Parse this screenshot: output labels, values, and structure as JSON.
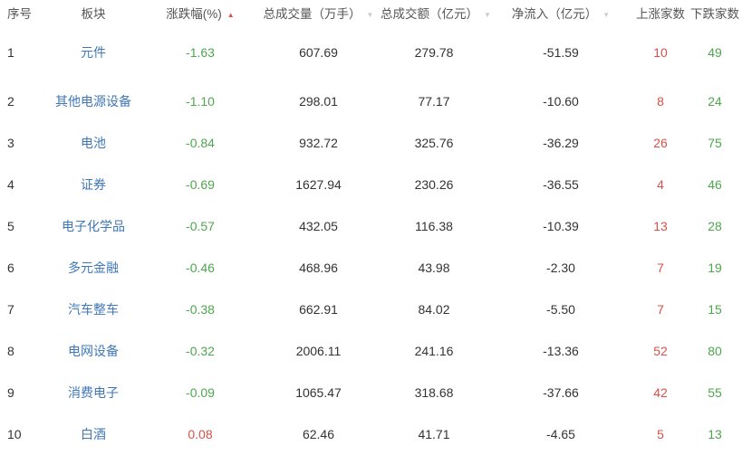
{
  "headers": {
    "index": "序号",
    "sector": "板块",
    "change": "涨跌幅(%)",
    "volume": "总成交量（万手）",
    "amount": "总成交额（亿元）",
    "netflow": "净流入（亿元）",
    "up": "上涨家数",
    "down": "下跌家数"
  },
  "sort": {
    "active_column": "change",
    "direction": "ascending"
  },
  "colors": {
    "up": "#d8504b",
    "down": "#4ea64e",
    "link": "#3f77b8"
  },
  "rows": [
    {
      "index": "1",
      "sector": "元件",
      "change": "-1.63",
      "volume": "607.69",
      "amount": "279.78",
      "netflow": "-51.59",
      "up": "10",
      "down": "49"
    },
    {
      "index": "2",
      "sector": "其他电源设备",
      "change": "-1.10",
      "volume": "298.01",
      "amount": "77.17",
      "netflow": "-10.60",
      "up": "8",
      "down": "24"
    },
    {
      "index": "3",
      "sector": "电池",
      "change": "-0.84",
      "volume": "932.72",
      "amount": "325.76",
      "netflow": "-36.29",
      "up": "26",
      "down": "75"
    },
    {
      "index": "4",
      "sector": "证券",
      "change": "-0.69",
      "volume": "1627.94",
      "amount": "230.26",
      "netflow": "-36.55",
      "up": "4",
      "down": "46"
    },
    {
      "index": "5",
      "sector": "电子化学品",
      "change": "-0.57",
      "volume": "432.05",
      "amount": "116.38",
      "netflow": "-10.39",
      "up": "13",
      "down": "28"
    },
    {
      "index": "6",
      "sector": "多元金融",
      "change": "-0.46",
      "volume": "468.96",
      "amount": "43.98",
      "netflow": "-2.30",
      "up": "7",
      "down": "19"
    },
    {
      "index": "7",
      "sector": "汽车整车",
      "change": "-0.38",
      "volume": "662.91",
      "amount": "84.02",
      "netflow": "-5.50",
      "up": "7",
      "down": "15"
    },
    {
      "index": "8",
      "sector": "电网设备",
      "change": "-0.32",
      "volume": "2006.11",
      "amount": "241.16",
      "netflow": "-13.36",
      "up": "52",
      "down": "80"
    },
    {
      "index": "9",
      "sector": "消费电子",
      "change": "-0.09",
      "volume": "1065.47",
      "amount": "318.68",
      "netflow": "-37.66",
      "up": "42",
      "down": "55"
    },
    {
      "index": "10",
      "sector": "白酒",
      "change": "0.08",
      "volume": "62.46",
      "amount": "41.71",
      "netflow": "-4.65",
      "up": "5",
      "down": "13"
    }
  ]
}
